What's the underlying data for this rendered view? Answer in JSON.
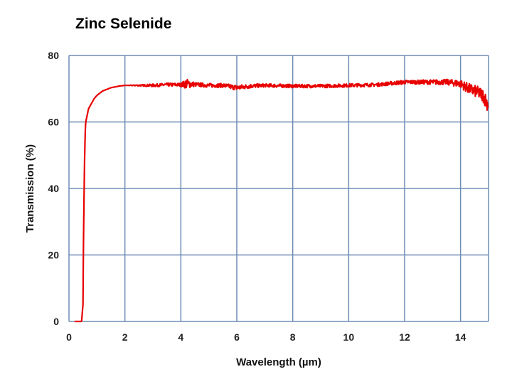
{
  "chart_data": {
    "type": "line",
    "title": "Zinc Selenide",
    "xlabel": "Wavelength (µm)",
    "ylabel": "Transmission (%)",
    "xlim": [
      0,
      15
    ],
    "ylim": [
      0,
      80
    ],
    "xticks": [
      0,
      2,
      4,
      6,
      8,
      10,
      12,
      14
    ],
    "yticks": [
      0,
      20,
      40,
      60,
      80
    ],
    "grid": true,
    "colors": {
      "line": "#e80000",
      "grid": "#6f8db5"
    },
    "series": [
      {
        "name": "Transmission",
        "x": [
          0.2,
          0.45,
          0.5,
          0.52,
          0.55,
          0.58,
          0.6,
          0.65,
          0.7,
          0.8,
          0.9,
          1.0,
          1.2,
          1.5,
          1.8,
          2.0,
          2.5,
          3,
          3.5,
          4,
          4.2,
          4.5,
          5,
          5.5,
          6,
          6.5,
          7,
          8,
          9,
          10,
          11,
          12,
          12.5,
          13,
          13.5,
          14,
          14.3,
          14.6,
          14.8,
          15
        ],
        "y": [
          0,
          0,
          5,
          25,
          45,
          57,
          60,
          62,
          64,
          65.5,
          67,
          68,
          69.3,
          70.3,
          70.8,
          71,
          71,
          71,
          71.2,
          71.2,
          71.5,
          71.3,
          71,
          71,
          70.3,
          70.8,
          71,
          70.8,
          70.8,
          71,
          71.2,
          72,
          72,
          72,
          72,
          71.5,
          70,
          69,
          68,
          65
        ],
        "noise": [
          0,
          0,
          0,
          0,
          0,
          0,
          0,
          0,
          0,
          0,
          0,
          0,
          0,
          0,
          0,
          0,
          0.2,
          0.4,
          0.5,
          0.5,
          1.5,
          0.6,
          0.6,
          0.6,
          0.8,
          0.6,
          0.5,
          0.5,
          0.5,
          0.5,
          0.5,
          0.6,
          0.6,
          0.7,
          0.8,
          1.2,
          1.6,
          1.8,
          2.0,
          2.4
        ]
      }
    ]
  }
}
